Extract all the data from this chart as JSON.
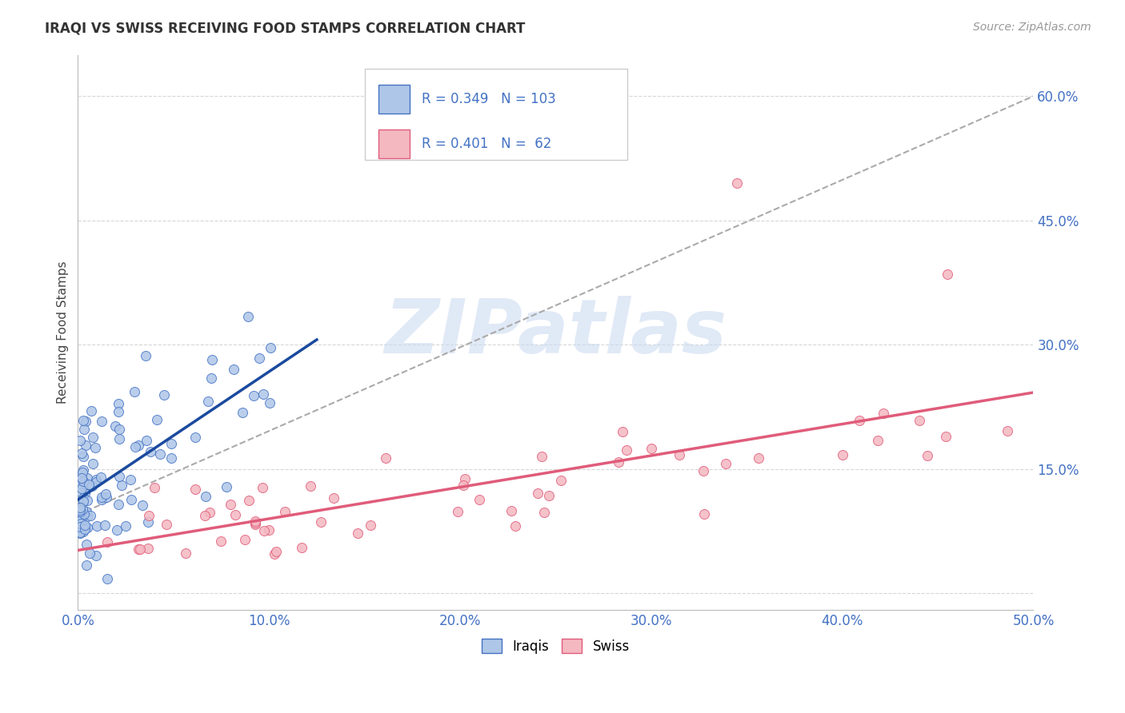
{
  "title": "IRAQI VS SWISS RECEIVING FOOD STAMPS CORRELATION CHART",
  "source": "Source: ZipAtlas.com",
  "tick_color": "#4472c4",
  "ylabel": "Receiving Food Stamps",
  "xlim": [
    0.0,
    0.5
  ],
  "ylim": [
    -0.02,
    0.65
  ],
  "yticks": [
    0.0,
    0.15,
    0.3,
    0.45,
    0.6
  ],
  "ytick_labels": [
    "",
    "15.0%",
    "30.0%",
    "45.0%",
    "60.0%"
  ],
  "xticks": [
    0.0,
    0.1,
    0.2,
    0.3,
    0.4,
    0.5
  ],
  "xtick_labels": [
    "0.0%",
    "10.0%",
    "20.0%",
    "30.0%",
    "40.0%",
    "50.0%"
  ],
  "grid_color": "#cccccc",
  "background_color": "#ffffff",
  "watermark_text": "ZIPatlas",
  "watermark_color": "#c8d8f0",
  "iraqi_face_color": "#aec6e8",
  "iraqi_edge_color": "#4472c4",
  "swiss_face_color": "#f4b8c1",
  "swiss_edge_color": "#e05c7a",
  "iraqi_line_color": "#1a4a9e",
  "swiss_line_color": "#e05c7a",
  "overall_line_color": "#aaaaaa",
  "R_iraqi": "0.349",
  "N_iraqi": "103",
  "R_swiss": "0.401",
  "N_swiss": "62",
  "legend_label_iraqi": "R = 0.349   N = 103",
  "legend_label_swiss": "R = 0.401   N =  62",
  "bottom_legend_iraqi": "Iraqis",
  "bottom_legend_swiss": "Swiss"
}
